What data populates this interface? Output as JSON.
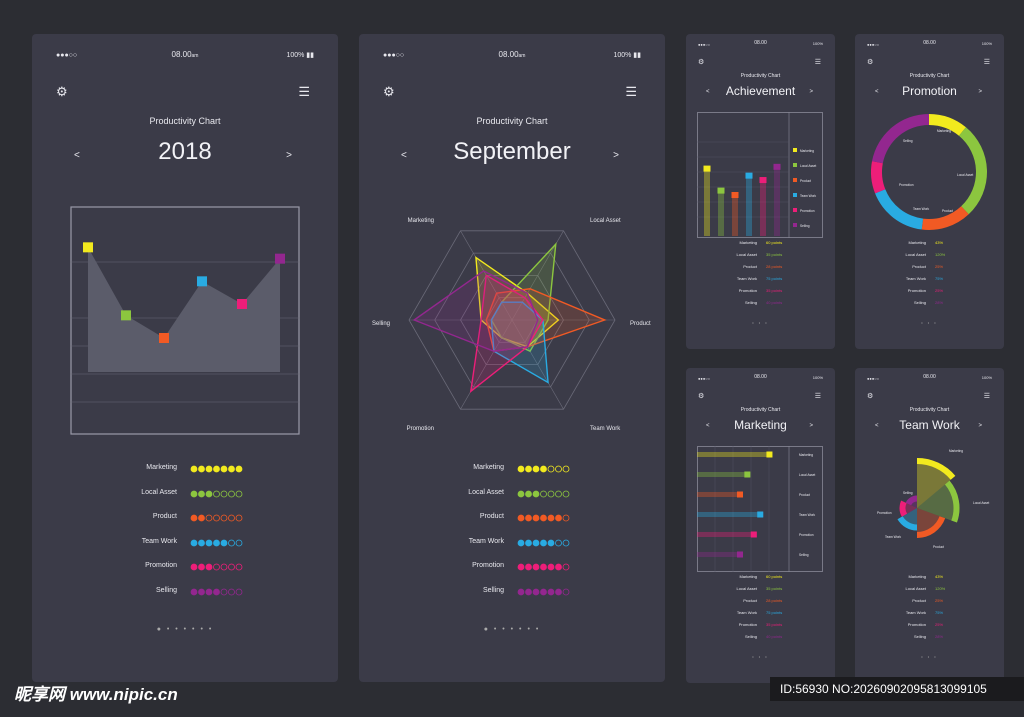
{
  "status": {
    "signal": "●●●○○",
    "time": "08.00",
    "time_suffix": "am",
    "battery": "100%"
  },
  "common": {
    "chart_title": "Productivity Chart",
    "prev": "<",
    "next": ">"
  },
  "screen1": {
    "title": "2018"
  },
  "screen2": {
    "title": "September"
  },
  "screen3": {
    "title": "Achievement"
  },
  "screen4": {
    "title": "Promotion"
  },
  "screen5": {
    "title": "Marketing"
  },
  "screen6": {
    "title": "Team Work"
  },
  "categories": [
    "Marketing",
    "Local Asset",
    "Product",
    "Team Work",
    "Promotion",
    "Selling"
  ],
  "colors": {
    "Marketing": "#f2ea1e",
    "Local Asset": "#8cc63f",
    "Product": "#f15a24",
    "Team Work": "#29abe2",
    "Promotion": "#ed1e79",
    "Selling": "#93278f"
  },
  "ratings1": [
    7,
    3,
    2,
    5,
    3,
    4
  ],
  "ratings2": [
    4,
    3,
    6,
    5,
    6,
    6
  ],
  "points_list": [
    "60 points",
    "35 points",
    "28 points",
    "75 points",
    "35 points",
    "40 points"
  ],
  "percent_list": [
    "43%",
    "120%",
    "25%",
    "75%",
    "25%",
    "28%"
  ],
  "watermark": "昵享网 www.nipic.cn",
  "image_id": "ID:56930 NO:20260902095813099105",
  "chart_data": [
    {
      "type": "area",
      "categories": [
        "Marketing",
        "Local Asset",
        "Product",
        "Team Work",
        "Promotion",
        "Selling"
      ],
      "values": [
        5.5,
        2.5,
        1.5,
        4.0,
        3.0,
        5.0
      ]
    },
    {
      "type": "radar",
      "axes": [
        "Marketing",
        "Local Asset",
        "Product",
        "Team Work",
        "Promotion",
        "Selling"
      ],
      "series": [
        {
          "values": [
            0.7,
            0.3,
            0.45,
            0.3,
            0.2,
            0.3
          ]
        },
        {
          "values": [
            0.2,
            0.85,
            0.35,
            0.35,
            0.2,
            0.2
          ]
        },
        {
          "values": [
            0.3,
            0.35,
            0.9,
            0.3,
            0.35,
            0.25
          ]
        },
        {
          "values": [
            0.2,
            0.2,
            0.3,
            0.7,
            0.35,
            0.2
          ]
        },
        {
          "values": [
            0.5,
            0.25,
            0.3,
            0.3,
            0.8,
            0.3
          ]
        },
        {
          "values": [
            0.55,
            0.3,
            0.25,
            0.3,
            0.35,
            0.95
          ]
        }
      ]
    },
    {
      "type": "bar",
      "categories": [
        "Marketing",
        "Local Asset",
        "Product",
        "Team Work",
        "Promotion",
        "Selling"
      ],
      "values": [
        80,
        55,
        50,
        72,
        67,
        82
      ]
    },
    {
      "type": "pie",
      "categories": [
        "Marketing",
        "Local Asset",
        "Product",
        "Team Work",
        "Promotion",
        "Selling"
      ],
      "values": [
        11,
        27,
        14,
        17,
        9,
        22
      ]
    },
    {
      "type": "bar",
      "orientation": "horizontal",
      "categories": [
        "Marketing",
        "Local Asset",
        "Product",
        "Team Work",
        "Promotion",
        "Selling"
      ],
      "values": [
        82,
        58,
        50,
        72,
        65,
        50
      ]
    },
    {
      "type": "pie",
      "variant": "polar",
      "categories": [
        "Marketing",
        "Local Asset",
        "Product",
        "Team Work",
        "Promotion",
        "Selling"
      ],
      "values": [
        1.0,
        0.85,
        0.6,
        0.45,
        0.35,
        0.25
      ]
    }
  ]
}
